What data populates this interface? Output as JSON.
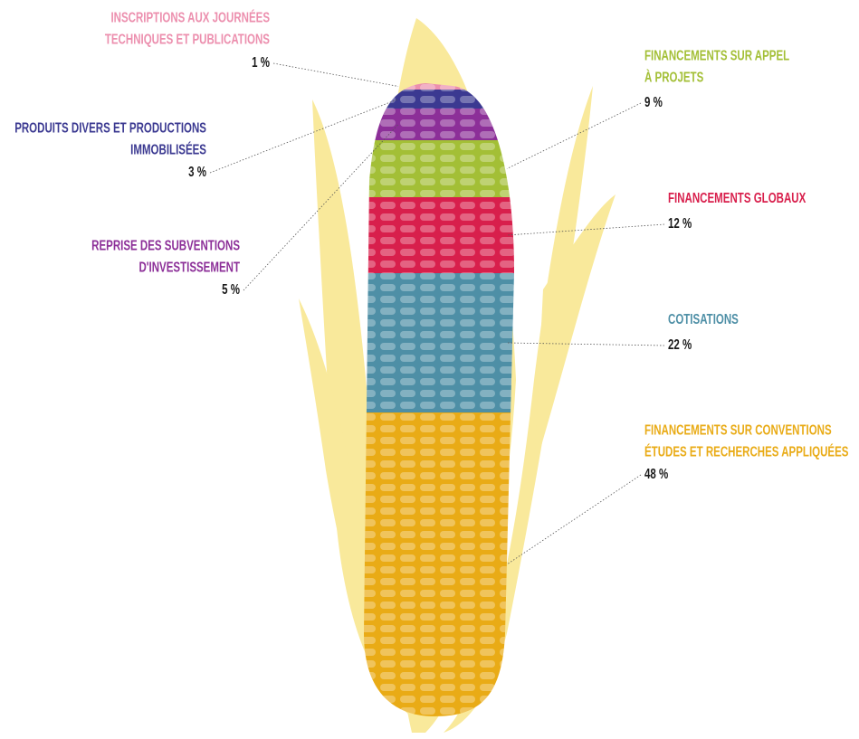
{
  "chart_data": {
    "type": "corn",
    "categories": [
      "INSCRIPTIONS AUX JOURNÉES\nTECHNIQUES ET PUBLICATIONS",
      "PRODUITS DIVERS ET PRODUCTIONS\nIMMOBILISÉES",
      "REPRISE DES SUBVENTIONS\nD'INVESTISSEMENT",
      "FINANCEMENTS SUR APPEL\nÀ PROJETS",
      "FINANCEMENTS GLOBAUX",
      "COTISATIONS",
      "FINANCEMENTS SUR CONVENTIONS\nÉTUDES ET RECHERCHES APPLIQUÉES"
    ],
    "values": [
      1,
      3,
      5,
      9,
      12,
      22,
      48
    ],
    "value_labels": [
      "1 %",
      "3 %",
      "5 %",
      "9 %",
      "12 %",
      "22 %",
      "48 %"
    ],
    "colors": [
      "#ec8fae",
      "#3b3991",
      "#8c2f98",
      "#a3bf36",
      "#d81f4c",
      "#4e8fa6",
      "#e9ab16"
    ]
  }
}
